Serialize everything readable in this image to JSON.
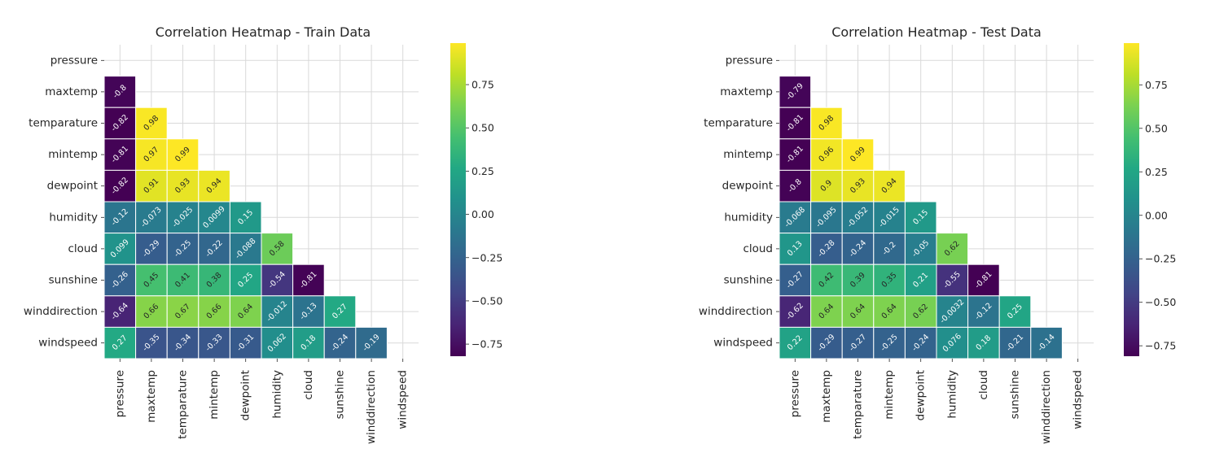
{
  "chart_data": [
    {
      "type": "heatmap",
      "title": "Correlation Heatmap - Train Data",
      "variables": [
        "pressure",
        "maxtemp",
        "temparature",
        "mintemp",
        "dewpoint",
        "humidity",
        "cloud",
        "sunshine",
        "winddirection",
        "windspeed"
      ],
      "mask": "upper-triangle-including-diagonal",
      "colormap": "viridis",
      "vmin": -0.82,
      "vmax": 0.99,
      "grid": true,
      "colorbar_ticks": [
        0.75,
        0.5,
        0.25,
        0.0,
        -0.25,
        -0.5,
        -0.75
      ],
      "colorbar_tick_labels": [
        "0.75",
        "0.50",
        "0.25",
        "0.00",
        "−0.25",
        "−0.50",
        "−0.75"
      ],
      "values": [
        [],
        [
          -0.8
        ],
        [
          -0.82,
          0.98
        ],
        [
          -0.81,
          0.97,
          0.99
        ],
        [
          -0.82,
          0.91,
          0.93,
          0.94
        ],
        [
          -0.12,
          -0.073,
          -0.025,
          0.0099,
          0.15
        ],
        [
          0.099,
          -0.29,
          -0.25,
          -0.22,
          -0.088,
          0.58
        ],
        [
          -0.26,
          0.45,
          0.41,
          0.38,
          0.25,
          -0.54,
          -0.81
        ],
        [
          -0.64,
          0.66,
          0.67,
          0.66,
          0.64,
          -0.012,
          -0.13,
          0.27
        ],
        [
          0.27,
          -0.35,
          -0.34,
          -0.33,
          -0.31,
          0.062,
          0.18,
          -0.24,
          -0.19
        ]
      ]
    },
    {
      "type": "heatmap",
      "title": "Correlation Heatmap - Test Data",
      "variables": [
        "pressure",
        "maxtemp",
        "temparature",
        "mintemp",
        "dewpoint",
        "humidity",
        "cloud",
        "sunshine",
        "winddirection",
        "windspeed"
      ],
      "mask": "upper-triangle-including-diagonal",
      "colormap": "viridis",
      "vmin": -0.81,
      "vmax": 0.99,
      "grid": true,
      "colorbar_ticks": [
        0.75,
        0.5,
        0.25,
        0.0,
        -0.25,
        -0.5,
        -0.75
      ],
      "colorbar_tick_labels": [
        "0.75",
        "0.50",
        "0.25",
        "0.00",
        "−0.25",
        "−0.50",
        "−0.75"
      ],
      "values": [
        [],
        [
          -0.79
        ],
        [
          -0.81,
          0.98
        ],
        [
          -0.81,
          0.96,
          0.99
        ],
        [
          -0.8,
          0.9,
          0.93,
          0.94
        ],
        [
          -0.068,
          -0.095,
          -0.052,
          -0.015,
          0.15
        ],
        [
          0.13,
          -0.28,
          -0.24,
          -0.2,
          -0.05,
          0.62
        ],
        [
          -0.27,
          0.42,
          0.39,
          0.35,
          0.21,
          -0.55,
          -0.81
        ],
        [
          -0.62,
          0.64,
          0.64,
          0.64,
          0.62,
          -0.0032,
          -0.12,
          0.25
        ],
        [
          0.22,
          -0.29,
          -0.27,
          -0.25,
          -0.24,
          0.076,
          0.18,
          -0.21,
          -0.14
        ]
      ]
    }
  ]
}
